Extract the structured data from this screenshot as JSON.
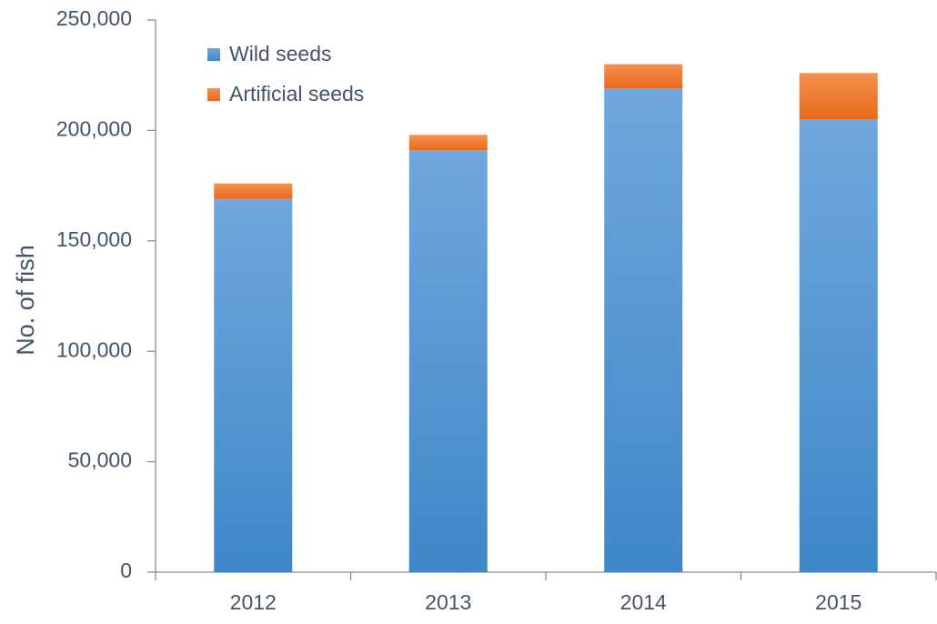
{
  "chart_data": {
    "type": "bar",
    "stacked": true,
    "y_label": "No. of fish",
    "categories": [
      "2012",
      "2013",
      "2014",
      "2015"
    ],
    "series": [
      {
        "name": "Wild seeds",
        "color": "#5b9bd5",
        "values": [
          169000,
          191000,
          219000,
          205000
        ]
      },
      {
        "name": "Artificial seeds",
        "color": "#ed7d31",
        "values": [
          7000,
          7000,
          11000,
          21000
        ]
      }
    ],
    "ylim": [
      0,
      250000
    ],
    "yticks": [
      0,
      {
        "value": 50000,
        "label": "50,000"
      },
      {
        "value": 100000,
        "label": "100,000"
      },
      {
        "value": 150000,
        "label": "150,000"
      },
      {
        "value": 200000,
        "label": "200,000"
      },
      {
        "value": 250000,
        "label": "250,000"
      }
    ],
    "legend": "upper-left"
  }
}
